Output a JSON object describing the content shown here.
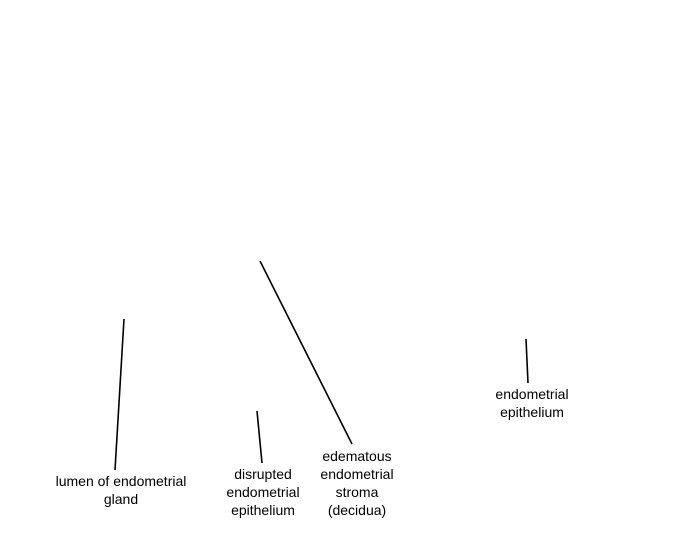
{
  "diagram": {
    "labels": {
      "lumen": {
        "line1": "lumen of endometrial",
        "line2": "gland"
      },
      "disrupted_epithelium": {
        "line1": "disrupted",
        "line2": "endometrial",
        "line3": "epithelium"
      },
      "stroma": {
        "line1": "edematous",
        "line2": "endometrial",
        "line3": "stroma",
        "line4": "(decidua)"
      },
      "epithelium": {
        "line1": "endometrial",
        "line2": "epithelium"
      }
    },
    "colors": {
      "background": "#ffffff",
      "leader_line": "#000000",
      "text": "#000000"
    }
  }
}
